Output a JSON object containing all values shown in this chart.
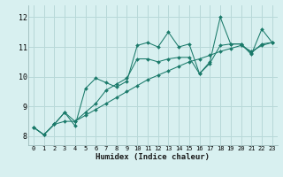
{
  "xlabel": "Humidex (Indice chaleur)",
  "bg_color": "#d8f0f0",
  "grid_color": "#b8d8d8",
  "line_color": "#1a7a6a",
  "xlim": [
    -0.5,
    23.5
  ],
  "ylim": [
    7.7,
    12.4
  ],
  "xticks": [
    0,
    1,
    2,
    3,
    4,
    5,
    6,
    7,
    8,
    9,
    10,
    11,
    12,
    13,
    14,
    15,
    16,
    17,
    18,
    19,
    20,
    21,
    22,
    23
  ],
  "yticks": [
    8,
    9,
    10,
    11,
    12
  ],
  "line1_y": [
    8.3,
    8.05,
    8.4,
    8.8,
    8.35,
    9.6,
    9.95,
    9.8,
    9.65,
    9.85,
    11.05,
    11.15,
    11.0,
    11.5,
    11.0,
    11.1,
    10.1,
    10.5,
    12.0,
    11.1,
    11.1,
    10.75,
    11.6,
    11.15
  ],
  "line2_y": [
    8.3,
    8.05,
    8.4,
    8.8,
    8.5,
    8.8,
    9.1,
    9.55,
    9.75,
    9.95,
    10.6,
    10.6,
    10.5,
    10.6,
    10.65,
    10.65,
    10.1,
    10.45,
    11.05,
    11.1,
    11.1,
    10.8,
    11.1,
    11.15
  ],
  "line3_y": [
    8.3,
    8.05,
    8.4,
    8.5,
    8.5,
    8.7,
    8.9,
    9.1,
    9.3,
    9.5,
    9.7,
    9.9,
    10.05,
    10.2,
    10.35,
    10.5,
    10.6,
    10.72,
    10.85,
    10.95,
    11.05,
    10.85,
    11.05,
    11.15
  ]
}
